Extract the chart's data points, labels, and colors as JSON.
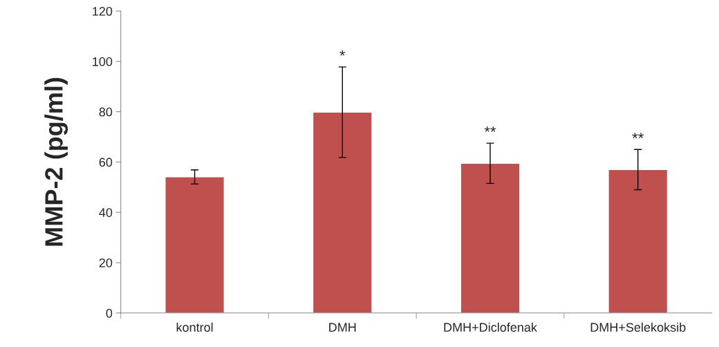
{
  "chart_data": {
    "type": "bar",
    "ylabel": "MMP-2 (pg/ml)",
    "categories": [
      "kontrol",
      "DMH",
      "DMH+Diclofenak",
      "DMH+Selekoksib"
    ],
    "values": [
      54.1,
      79.8,
      59.5,
      57
    ],
    "errors": [
      2.8,
      18,
      8,
      8
    ],
    "color": "#c0504d",
    "ylim": [
      0,
      120
    ],
    "yticks": [
      0,
      20,
      40,
      60,
      80,
      100,
      120
    ],
    "grid": false,
    "legend": false,
    "annotations": [
      {
        "text": "*",
        "x": "DMH",
        "y": 97.8
      },
      {
        "text": "**",
        "x": "DMH+Diclofenak",
        "y": 67.5
      },
      {
        "text": "**",
        "x": "DMH+Selekoksib",
        "y": 65
      }
    ]
  }
}
